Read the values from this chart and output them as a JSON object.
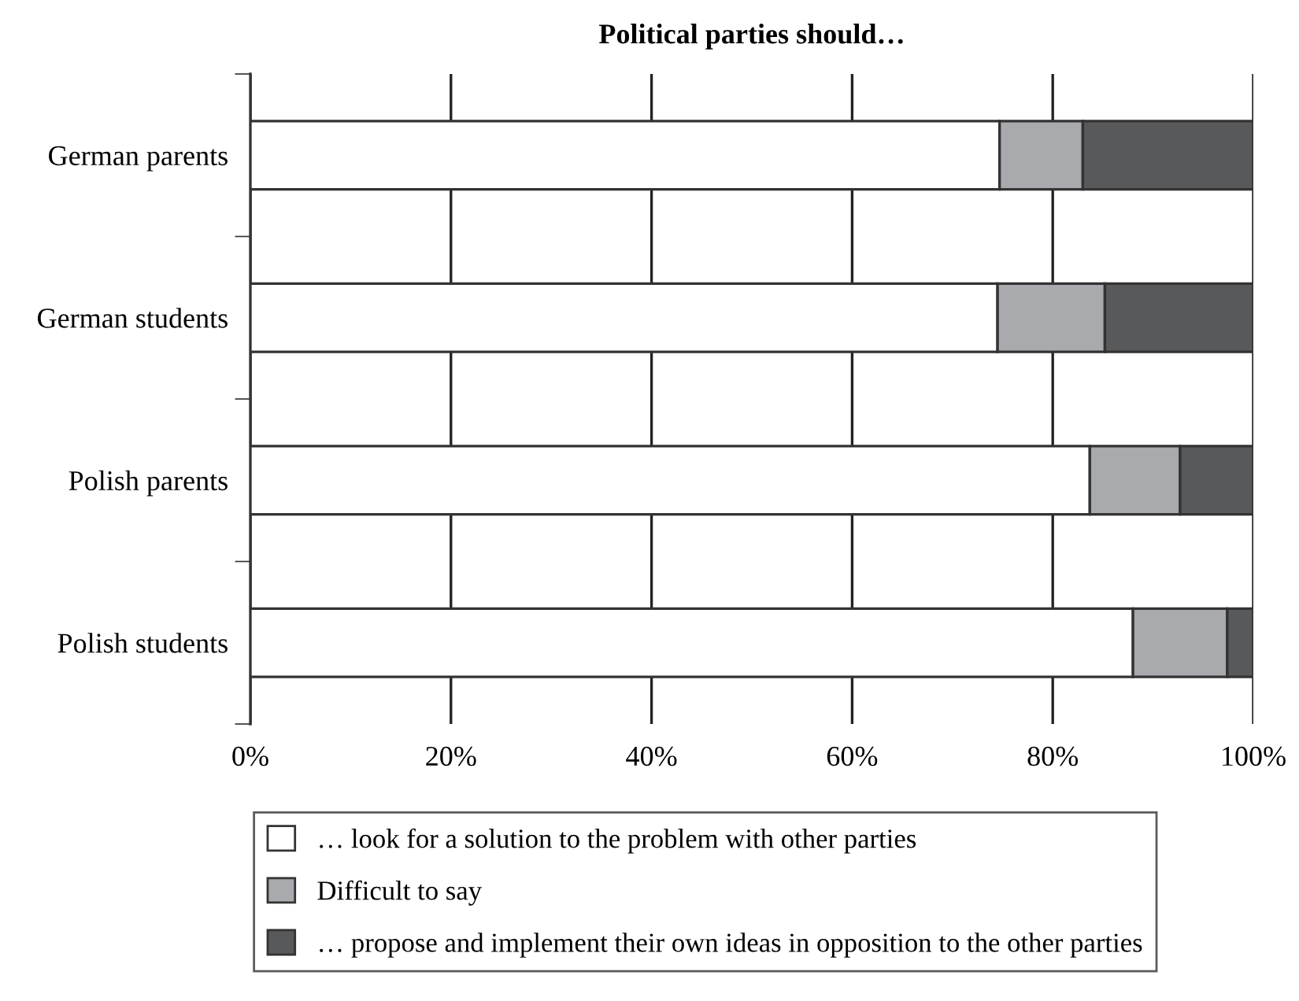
{
  "chart_data": {
    "type": "bar",
    "orientation": "horizontal",
    "stacked": true,
    "title": "Political parties should…",
    "categories": [
      "German parents",
      "German students",
      "Polish parents",
      "Polish students"
    ],
    "series": [
      {
        "name": "… look for a solution to the problem with other parties",
        "color": "#ffffff",
        "values": [
          74.7,
          74.5,
          83.7,
          88.0
        ]
      },
      {
        "name": "Difficult to say",
        "color": "#a9aaad",
        "values": [
          8.3,
          10.7,
          9.0,
          9.4
        ]
      },
      {
        "name": "… propose and implement their own ideas in opposition to the other parties",
        "color": "#58595b",
        "values": [
          17.0,
          14.8,
          7.3,
          2.6
        ]
      }
    ],
    "xlim": [
      0,
      100
    ],
    "xticks": [
      {
        "value": 0,
        "label": "0%"
      },
      {
        "value": 20,
        "label": "20%"
      },
      {
        "value": 40,
        "label": "40%"
      },
      {
        "value": 60,
        "label": "60%"
      },
      {
        "value": 80,
        "label": "80%"
      },
      {
        "value": 100,
        "label": "100%"
      }
    ],
    "grid": "x",
    "legend": "bottom"
  }
}
